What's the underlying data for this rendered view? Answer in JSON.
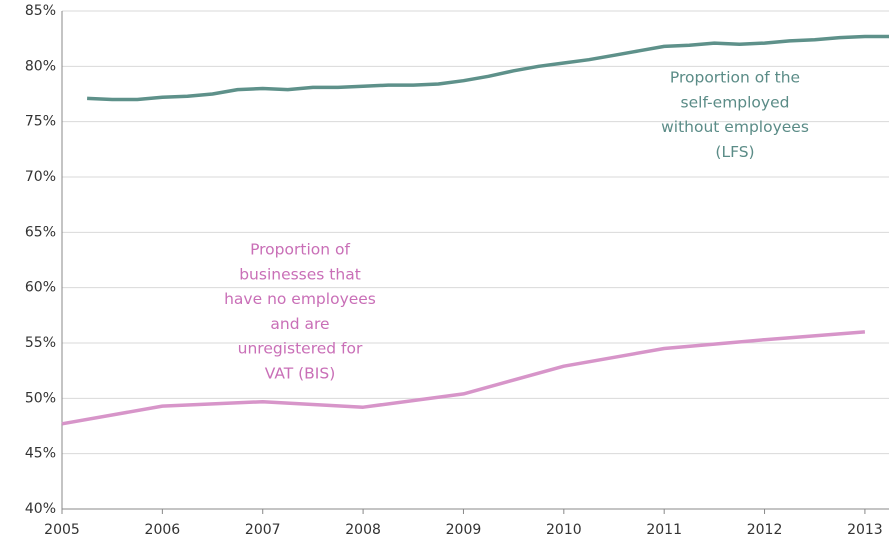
{
  "chart_data": {
    "type": "line",
    "xlim": [
      2005,
      2013.24
    ],
    "xticks": [
      2005,
      2006,
      2007,
      2008,
      2009,
      2010,
      2011,
      2012,
      2013
    ],
    "ylim": [
      40,
      85
    ],
    "yticks": [
      {
        "value": 40,
        "label": "40%"
      },
      {
        "value": 45,
        "label": "45%"
      },
      {
        "value": 50,
        "label": "50%"
      },
      {
        "value": 55,
        "label": "55%"
      },
      {
        "value": 60,
        "label": "60%"
      },
      {
        "value": 65,
        "label": "65%"
      },
      {
        "value": 70,
        "label": "70%"
      },
      {
        "value": 75,
        "label": "75%"
      },
      {
        "value": 80,
        "label": "80%"
      },
      {
        "value": 85,
        "label": "85%"
      }
    ],
    "grid": true,
    "series": [
      {
        "color": "#5e918a",
        "x": [
          2005.25,
          2005.5,
          2005.75,
          2006,
          2006.25,
          2006.5,
          2006.75,
          2007,
          2007.25,
          2007.5,
          2007.75,
          2008,
          2008.25,
          2008.5,
          2008.75,
          2009,
          2009.25,
          2009.5,
          2009.75,
          2010,
          2010.25,
          2010.5,
          2010.75,
          2011,
          2011.25,
          2011.5,
          2011.75,
          2012,
          2012.25,
          2012.5,
          2012.75,
          2013,
          2013.24
        ],
        "values": [
          77.1,
          77.0,
          77.0,
          77.2,
          77.3,
          77.5,
          77.9,
          78.0,
          77.9,
          78.1,
          78.1,
          78.2,
          78.3,
          78.3,
          78.4,
          78.7,
          79.1,
          79.6,
          80.0,
          80.3,
          80.6,
          81.0,
          81.4,
          81.8,
          81.9,
          82.1,
          82.0,
          82.1,
          82.3,
          82.4,
          82.6,
          82.7,
          82.7
        ]
      },
      {
        "color": "#d795c9",
        "x": [
          2005,
          2006,
          2007,
          2008,
          2009,
          2010,
          2011,
          2012,
          2013
        ],
        "values": [
          47.7,
          49.3,
          49.7,
          49.2,
          50.4,
          52.9,
          54.5,
          55.3,
          56.0
        ]
      }
    ],
    "annotations": [
      {
        "lines": [
          "Proportion of the",
          "self-employed",
          "without employees",
          "(LFS)"
        ],
        "color": "#5b8c87"
      },
      {
        "lines": [
          "Proportion of",
          "businesses that",
          "have no employees",
          "and are",
          "unregistered for",
          "VAT (BIS)"
        ],
        "color": "#c96fb7"
      }
    ]
  }
}
